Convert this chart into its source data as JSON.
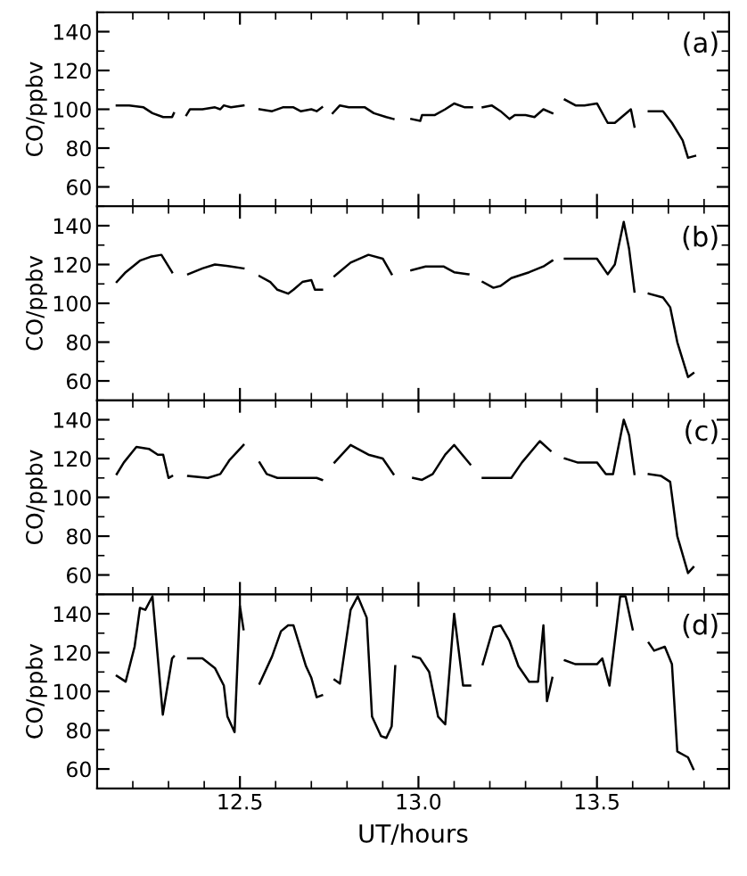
{
  "chart_data": [
    {
      "type": "line",
      "ylabel": "CO/ppbv",
      "annotations": [
        "(a)"
      ],
      "xlim": [
        12.1,
        13.87
      ],
      "ylim": [
        50,
        150
      ],
      "yticks": [
        60,
        80,
        100,
        120,
        140
      ],
      "tick_labels": "y",
      "grid": false,
      "legend": false,
      "series": [
        {
          "color": "#000000",
          "x": [
            12.155,
            12.19,
            12.23,
            12.255,
            12.285,
            12.31,
            12.315,
            12.33,
            12.35,
            12.36,
            12.395,
            12.43,
            12.445,
            12.455,
            12.475,
            12.51,
            12.53,
            12.555,
            12.59,
            12.62,
            12.65,
            12.67,
            12.7,
            12.715,
            12.73,
            12.745,
            12.76,
            12.78,
            12.805,
            12.83,
            12.85,
            12.875,
            12.91,
            12.93,
            12.955,
            12.98,
            13.005,
            13.01,
            13.045,
            13.075,
            13.1,
            13.13,
            13.15,
            13.165,
            13.18,
            13.205,
            13.23,
            13.255,
            13.27,
            13.3,
            13.325,
            13.35,
            13.375,
            13.39,
            13.41,
            13.44,
            13.465,
            13.5,
            13.53,
            13.55,
            13.595,
            13.605,
            13.625,
            13.645,
            13.685,
            13.71,
            13.74,
            13.755,
            13.775
          ],
          "values": [
            102,
            102,
            101,
            98,
            96,
            96,
            98,
            null,
            97,
            100,
            100,
            101,
            100,
            102,
            101,
            102,
            null,
            100,
            99,
            101,
            101,
            99,
            100,
            99,
            101,
            null,
            98,
            102,
            101,
            101,
            101,
            98,
            96,
            95,
            null,
            95,
            94,
            97,
            97,
            100,
            103,
            101,
            101,
            null,
            101,
            102,
            99,
            95,
            97,
            97,
            96,
            100,
            98,
            null,
            105,
            102,
            102,
            103,
            93,
            93,
            100,
            91,
            null,
            99,
            99,
            93,
            84,
            75,
            76
          ]
        }
      ]
    },
    {
      "type": "line",
      "ylabel": "CO/ppbv",
      "annotations": [
        "(b)"
      ],
      "xlim": [
        12.1,
        13.87
      ],
      "ylim": [
        50,
        150
      ],
      "yticks": [
        60,
        80,
        100,
        120,
        140
      ],
      "tick_labels": "y",
      "grid": false,
      "legend": false,
      "series": [
        {
          "color": "#000000",
          "x": [
            12.155,
            12.18,
            12.22,
            12.25,
            12.28,
            12.31,
            12.33,
            12.355,
            12.395,
            12.43,
            12.475,
            12.51,
            12.53,
            12.555,
            12.585,
            12.605,
            12.635,
            12.65,
            12.675,
            12.7,
            12.71,
            12.73,
            12.745,
            12.765,
            12.81,
            12.86,
            12.9,
            12.925,
            12.95,
            12.98,
            13.02,
            13.07,
            13.1,
            13.14,
            13.16,
            13.18,
            13.21,
            13.23,
            13.26,
            13.31,
            13.35,
            13.375,
            13.39,
            13.41,
            13.5,
            13.53,
            13.55,
            13.575,
            13.59,
            13.605,
            13.625,
            13.645,
            13.685,
            13.705,
            13.725,
            13.755,
            13.77
          ],
          "values": [
            111,
            116,
            122,
            124,
            125,
            116,
            null,
            115,
            118,
            120,
            119,
            118,
            null,
            114,
            111,
            107,
            105,
            107,
            111,
            112,
            107,
            107,
            null,
            114,
            121,
            125,
            123,
            115,
            null,
            117,
            119,
            119,
            116,
            115,
            null,
            111,
            108,
            109,
            113,
            116,
            119,
            122,
            null,
            123,
            123,
            115,
            120,
            142,
            128,
            106,
            null,
            105,
            103,
            98,
            80,
            62,
            64
          ]
        }
      ]
    },
    {
      "type": "line",
      "ylabel": "CO/ppbv",
      "annotations": [
        "(c)"
      ],
      "xlim": [
        12.1,
        13.87
      ],
      "ylim": [
        50,
        150
      ],
      "yticks": [
        60,
        80,
        100,
        120,
        140
      ],
      "tick_labels": "y",
      "grid": false,
      "legend": false,
      "series": [
        {
          "color": "#000000",
          "x": [
            12.155,
            12.175,
            12.21,
            12.245,
            12.27,
            12.285,
            12.3,
            12.31,
            12.33,
            12.355,
            12.41,
            12.445,
            12.47,
            12.51,
            12.53,
            12.555,
            12.575,
            12.605,
            12.7,
            12.715,
            12.73,
            12.745,
            12.765,
            12.81,
            12.86,
            12.9,
            12.93,
            12.955,
            12.985,
            13.01,
            13.04,
            13.075,
            13.1,
            13.145,
            13.16,
            13.18,
            13.26,
            13.29,
            13.34,
            13.37,
            13.39,
            13.41,
            13.445,
            13.5,
            13.525,
            13.545,
            13.575,
            13.59,
            13.605,
            13.625,
            13.645,
            13.68,
            13.705,
            13.725,
            13.755,
            13.77
          ],
          "values": [
            112,
            118,
            126,
            125,
            122,
            122,
            110,
            111,
            null,
            111,
            110,
            112,
            119,
            127,
            null,
            118,
            112,
            110,
            110,
            110,
            109,
            null,
            118,
            127,
            122,
            120,
            112,
            null,
            110,
            109,
            112,
            122,
            127,
            117,
            null,
            110,
            110,
            118,
            129,
            124,
            null,
            120,
            118,
            118,
            112,
            112,
            140,
            132,
            112,
            null,
            112,
            111,
            108,
            80,
            61,
            64
          ]
        }
      ]
    },
    {
      "type": "line",
      "ylabel": "CO/ppbv",
      "xlabel": "UT/hours",
      "annotations": [
        "(d)"
      ],
      "xlim": [
        12.1,
        13.87
      ],
      "ylim": [
        50,
        150
      ],
      "yticks": [
        60,
        80,
        100,
        120,
        140
      ],
      "xticks": [
        12.5,
        {
          "value": 13,
          "label": "13.0"
        },
        13.5
      ],
      "grid": false,
      "legend": false,
      "series": [
        {
          "color": "#000000",
          "x": [
            12.155,
            12.18,
            12.205,
            12.22,
            12.235,
            12.255,
            12.284,
            12.31,
            12.315,
            12.33,
            12.355,
            12.395,
            12.43,
            12.455,
            12.465,
            12.485,
            12.5,
            12.51,
            12.53,
            12.555,
            12.59,
            12.615,
            12.635,
            12.65,
            12.685,
            12.7,
            12.715,
            12.73,
            12.745,
            12.765,
            12.78,
            12.81,
            12.83,
            12.855,
            12.87,
            12.895,
            12.91,
            12.925,
            12.935,
            12.96,
            12.985,
            13.005,
            13.03,
            13.055,
            13.075,
            13.1,
            13.125,
            13.145,
            13.16,
            13.18,
            13.21,
            13.23,
            13.255,
            13.28,
            13.31,
            13.335,
            13.35,
            13.36,
            13.375,
            13.39,
            13.41,
            13.44,
            13.5,
            13.515,
            13.535,
            13.565,
            13.58,
            13.6,
            13.62,
            13.645,
            13.66,
            13.69,
            13.71,
            13.725,
            13.755,
            13.77
          ],
          "values": [
            108,
            105,
            123,
            143,
            142,
            149,
            88,
            117,
            118,
            null,
            117,
            117,
            112,
            103,
            87,
            79,
            144,
            132,
            null,
            104,
            118,
            131,
            134,
            134,
            113,
            107,
            97,
            98,
            null,
            106,
            104,
            142,
            149,
            138,
            87,
            77,
            76,
            82,
            113,
            null,
            118,
            117,
            110,
            87,
            83,
            140,
            103,
            103,
            null,
            114,
            133,
            134,
            126,
            113,
            105,
            105,
            134,
            95,
            107,
            null,
            116,
            114,
            114,
            117,
            103,
            149,
            149,
            132,
            null,
            125,
            121,
            123,
            114,
            69,
            66,
            60
          ]
        }
      ]
    }
  ]
}
